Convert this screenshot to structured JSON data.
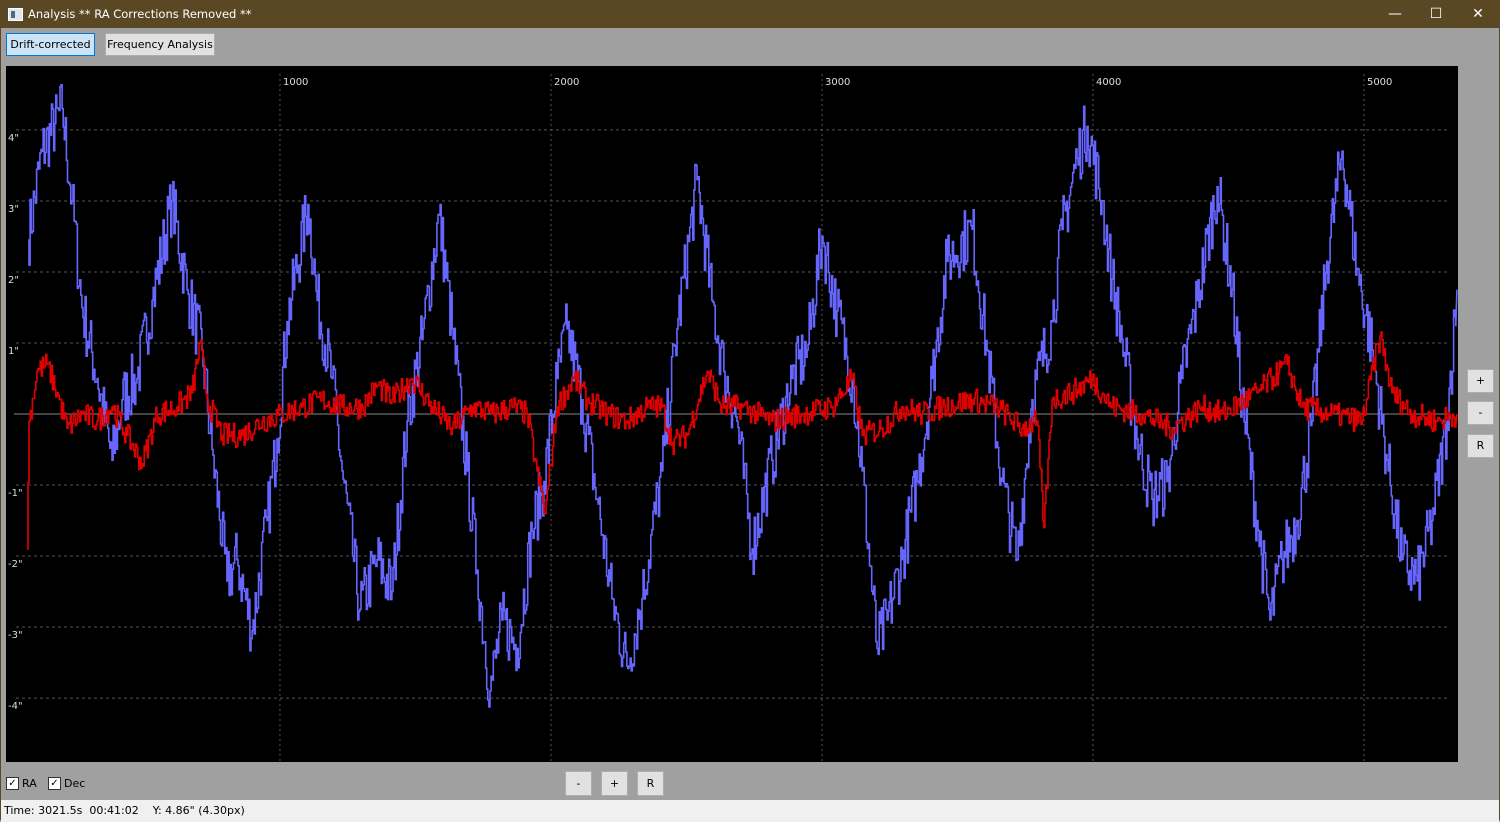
{
  "window": {
    "title": "Analysis ** RA Corrections Removed **",
    "minimize": "—",
    "maximize": "☐",
    "close": "✕"
  },
  "tabs": [
    {
      "label": "Drift-corrected",
      "active": true
    },
    {
      "label": "Frequency Analysis",
      "active": false
    }
  ],
  "side_controls": {
    "zoom_in": "+",
    "zoom_out": "-",
    "reset": "R"
  },
  "bottom_controls": {
    "zoom_out": "-",
    "zoom_in": "+",
    "reset": "R"
  },
  "checkboxes": [
    {
      "label": "RA",
      "checked": true
    },
    {
      "label": "Dec",
      "checked": true
    }
  ],
  "status": {
    "text": "Time: 3021.5s  00:41:02    Y: 4.86\" (4.30px)"
  },
  "chart_data": {
    "type": "line",
    "xlim": [
      -11,
      5347
    ],
    "ylim": [
      -4.9,
      4.9
    ],
    "x_ticks": [
      "1000",
      "2000",
      "3000",
      "4000",
      "5000"
    ],
    "x_tick_values": [
      1000,
      2000,
      3000,
      4000,
      5000
    ],
    "y_ticks": [
      "4\"",
      "3\"",
      "2\"",
      "1\"",
      "-1\"",
      "-2\"",
      "-3\"",
      "-4\""
    ],
    "y_tick_values": [
      4,
      3,
      2,
      1,
      -1,
      -2,
      -3,
      -4
    ],
    "grid": true,
    "colors": {
      "RA": "#6666ff",
      "Dec": "#e00000",
      "background": "#000000",
      "grid": "#555555"
    },
    "series": [
      {
        "name": "RA",
        "x": [
          70,
          122,
          196,
          232,
          269,
          325,
          380,
          417,
          472,
          528,
          601,
          657,
          712,
          749,
          804,
          841,
          897,
          952,
          989,
          1026,
          1103,
          1137,
          1192,
          1229,
          1295,
          1358,
          1413,
          1469,
          1524,
          1587,
          1635,
          1690,
          1727,
          1775,
          1819,
          1875,
          1930,
          1974,
          2022,
          2059,
          2114,
          2170,
          2225,
          2280,
          2336,
          2409,
          2465,
          2539,
          2594,
          2638,
          2686,
          2742,
          2815,
          2889,
          2945,
          3000,
          3055,
          3111,
          3148,
          3203,
          3240,
          3295,
          3351,
          3406,
          3461,
          3554,
          3609,
          3664,
          3720,
          3775,
          3849,
          3886,
          3941,
          3978,
          4033,
          4070,
          4107,
          4162,
          4218,
          4273,
          4328,
          4384,
          4458,
          4513,
          4550,
          4605,
          4653,
          4697,
          4753,
          4808,
          4863,
          4919,
          4974,
          5030,
          5085,
          5140,
          5196,
          5251,
          5306,
          5343
        ],
        "y": [
          2.45,
          3.7,
          4.3,
          3.0,
          1.5,
          0.5,
          -0.65,
          0.2,
          0.5,
          1.6,
          3.0,
          1.75,
          0.9,
          -0.5,
          -2.35,
          -2.05,
          -3.05,
          -1.5,
          -0.35,
          1.3,
          2.95,
          1.6,
          0.5,
          -0.8,
          -2.75,
          -2.05,
          -2.5,
          -0.1,
          1.05,
          2.8,
          1.2,
          -0.8,
          -2.2,
          -3.9,
          -2.9,
          -3.3,
          -1.65,
          -0.95,
          0.5,
          1.2,
          0.2,
          -1.2,
          -2.6,
          -3.55,
          -2.6,
          -0.8,
          1.2,
          3.3,
          1.6,
          0.6,
          -0.1,
          -1.9,
          -0.65,
          0.5,
          0.9,
          2.5,
          1.45,
          0.5,
          -0.8,
          -3.3,
          -2.9,
          -2.05,
          -0.95,
          0.5,
          2.15,
          2.6,
          0.9,
          -0.95,
          -2.05,
          0.2,
          1.3,
          2.6,
          3.6,
          4.05,
          3.0,
          1.9,
          1.05,
          -0.35,
          -1.2,
          -0.95,
          0.5,
          1.6,
          3.2,
          1.75,
          0.2,
          -1.5,
          -2.9,
          -2.05,
          -1.5,
          -0.1,
          2.15,
          3.7,
          2.05,
          0.9,
          -0.65,
          -2.05,
          -2.35,
          -1.5,
          -0.1,
          1.75
        ]
      },
      {
        "name": "Dec",
        "x": [
          66,
          74,
          103,
          140,
          177,
          214,
          269,
          325,
          380,
          435,
          491,
          546,
          620,
          675,
          705,
          731,
          786,
          860,
          934,
          1007,
          1081,
          1155,
          1229,
          1303,
          1358,
          1413,
          1487,
          1561,
          1635,
          1709,
          1782,
          1856,
          1911,
          1948,
          1978,
          2022,
          2085,
          2133,
          2207,
          2280,
          2354,
          2409,
          2447,
          2502,
          2576,
          2631,
          2705,
          2815,
          2926,
          3037,
          3111,
          3148,
          3221,
          3295,
          3369,
          3443,
          3554,
          3646,
          3738,
          3793,
          3819,
          3849,
          3922,
          3996,
          4070,
          4181,
          4292,
          4402,
          4476,
          4605,
          4716,
          4771,
          4882,
          4993,
          5059,
          5103,
          5177,
          5269,
          5343
        ],
        "y": [
          -1.9,
          -0.1,
          0.6,
          0.7,
          0.3,
          -0.2,
          0,
          -0.1,
          0.1,
          -0.3,
          -0.7,
          0,
          0.1,
          0.3,
          1.0,
          0.2,
          -0.3,
          -0.3,
          -0.1,
          0,
          0.1,
          0.2,
          0.1,
          0.1,
          0.4,
          0.2,
          0.5,
          0.1,
          -0.2,
          0.1,
          0,
          0.1,
          0,
          -0.8,
          -1.4,
          0.1,
          0.5,
          0.2,
          0,
          -0.1,
          0.1,
          0.1,
          -0.4,
          -0.3,
          0.6,
          0.1,
          0.1,
          -0.1,
          0,
          0.1,
          0.5,
          -0.3,
          -0.2,
          0.1,
          0,
          0.1,
          0.2,
          0.1,
          -0.2,
          -0.1,
          -1.6,
          0.2,
          0.3,
          0.5,
          0.1,
          0,
          -0.2,
          0.1,
          0,
          0.3,
          0.7,
          0.1,
          0,
          -0.1,
          1.1,
          0.3,
          0,
          -0.1,
          0
        ]
      }
    ]
  }
}
